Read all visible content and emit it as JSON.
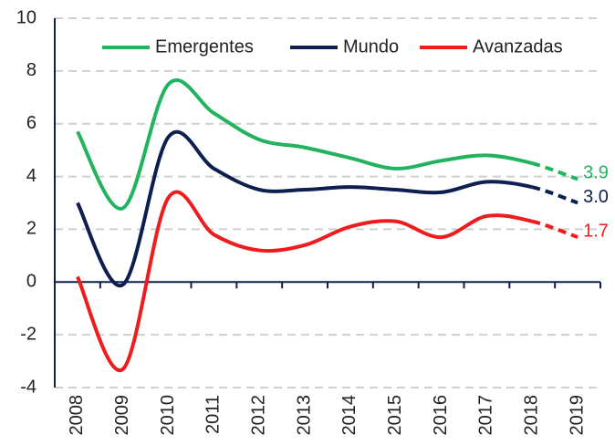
{
  "chart_data": {
    "type": "line",
    "categories": [
      "2008",
      "2009",
      "2010",
      "2011",
      "2012",
      "2013",
      "2014",
      "2015",
      "2016",
      "2017",
      "2018",
      "2019"
    ],
    "forecast_start": "2018",
    "series": [
      {
        "name": "Emergentes",
        "color": "#22b35e",
        "values": [
          5.7,
          2.8,
          7.5,
          6.4,
          5.4,
          5.1,
          4.7,
          4.3,
          4.6,
          4.8,
          4.5,
          3.9
        ],
        "value_labels": [
          null,
          null,
          null,
          null,
          null,
          null,
          null,
          null,
          null,
          null,
          null,
          "3.9"
        ]
      },
      {
        "name": "Mundo",
        "color": "#0d1f4f",
        "values": [
          3.0,
          -0.1,
          5.5,
          4.3,
          3.5,
          3.5,
          3.6,
          3.5,
          3.4,
          3.8,
          3.6,
          3.0
        ],
        "value_labels": [
          null,
          null,
          null,
          null,
          null,
          null,
          null,
          null,
          null,
          null,
          null,
          "3.0"
        ]
      },
      {
        "name": "Avanzadas",
        "color": "#ee1c1c",
        "values": [
          0.2,
          -3.3,
          3.2,
          1.8,
          1.2,
          1.4,
          2.1,
          2.3,
          1.7,
          2.5,
          2.3,
          1.7
        ],
        "value_labels": [
          null,
          null,
          null,
          null,
          null,
          null,
          null,
          null,
          null,
          null,
          null,
          "1.7"
        ]
      }
    ],
    "ylim": [
      -4,
      10
    ],
    "yticks": [
      10,
      8,
      6,
      4,
      2,
      0,
      -2,
      -4
    ],
    "grid": true
  }
}
